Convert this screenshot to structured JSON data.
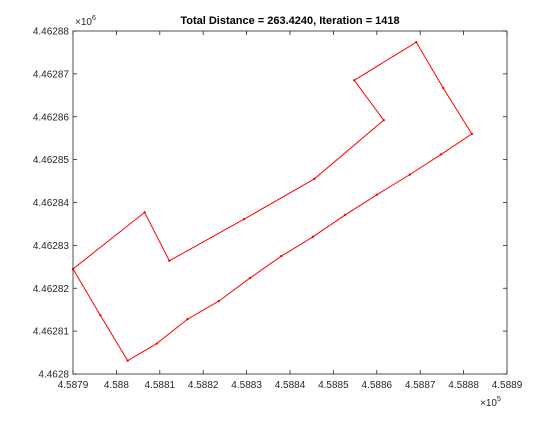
{
  "chart_data": {
    "type": "line",
    "title": "Total Distance = 263.4240, Iteration = 1418",
    "xlabel": "",
    "ylabel": "",
    "x_exponent": {
      "base": "×10",
      "power": "5"
    },
    "y_exponent": {
      "base": "×10",
      "power": "6"
    },
    "xlim": [
      458790,
      458890
    ],
    "ylim": [
      4462800,
      4462880
    ],
    "x_ticks": [
      458790,
      458800,
      458810,
      458820,
      458830,
      458840,
      458850,
      458860,
      458870,
      458880,
      458890
    ],
    "x_tick_labels": [
      "4.5879",
      "4.588",
      "4.5881",
      "4.5882",
      "4.5883",
      "4.5884",
      "4.5885",
      "4.5886",
      "4.5887",
      "4.5888",
      "4.5889"
    ],
    "y_ticks": [
      4462800,
      4462810,
      4462820,
      4462830,
      4462840,
      4462850,
      4462860,
      4462870,
      4462880
    ],
    "y_tick_labels": [
      "4.4628",
      "4.46281",
      "4.46282",
      "4.46283",
      "4.46284",
      "4.46285",
      "4.46286",
      "4.46287",
      "4.46288"
    ],
    "grid": false,
    "series": [
      {
        "color": "#ff0000",
        "closed": true,
        "x": [
          458790.0,
          458796.3,
          458802.6,
          458809.3,
          458816.4,
          458823.6,
          458830.8,
          458838.0,
          458845.3,
          458852.7,
          458860.0,
          458867.6,
          458874.8,
          458881.9,
          458875.3,
          458869.1,
          458854.8,
          458861.6,
          458845.6,
          458829.4,
          458812.2,
          458806.5
        ],
        "y": [
          4462824.5,
          4462813.7,
          4462803.1,
          4462807.1,
          4462812.8,
          4462817.0,
          4462822.4,
          4462827.5,
          4462832.0,
          4462837.1,
          4462841.8,
          4462846.5,
          4462851.2,
          4462856.0,
          4462866.7,
          4462877.4,
          4462868.5,
          4462859.2,
          4462845.5,
          4462836.1,
          4462826.4,
          4462837.7
        ]
      }
    ]
  }
}
